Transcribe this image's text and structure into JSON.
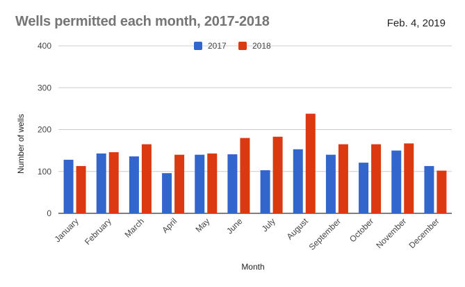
{
  "title": "Wells permitted each month, 2017-2018",
  "date": "Feb. 4, 2019",
  "colors": {
    "2017": "#3366cc",
    "2018": "#dc3912",
    "grid": "#cccccc",
    "axis": "#333333",
    "tick": "#444444"
  },
  "chart_data": {
    "type": "bar",
    "title": "Wells permitted each month, 2017-2018",
    "xlabel": "Month",
    "ylabel": "Number of wells",
    "ylim": [
      0,
      400
    ],
    "yticks": [
      0,
      100,
      200,
      300,
      400
    ],
    "grid": true,
    "legend_position": "top",
    "categories": [
      "January",
      "February",
      "March",
      "April",
      "May",
      "June",
      "July",
      "August",
      "September",
      "October",
      "November",
      "December"
    ],
    "series": [
      {
        "name": "2017",
        "color": "#3366cc",
        "values": [
          128,
          143,
          136,
          96,
          140,
          141,
          103,
          153,
          140,
          121,
          150,
          113
        ]
      },
      {
        "name": "2018",
        "color": "#dc3912",
        "values": [
          113,
          146,
          165,
          140,
          143,
          180,
          183,
          238,
          165,
          165,
          167,
          102
        ]
      }
    ]
  }
}
